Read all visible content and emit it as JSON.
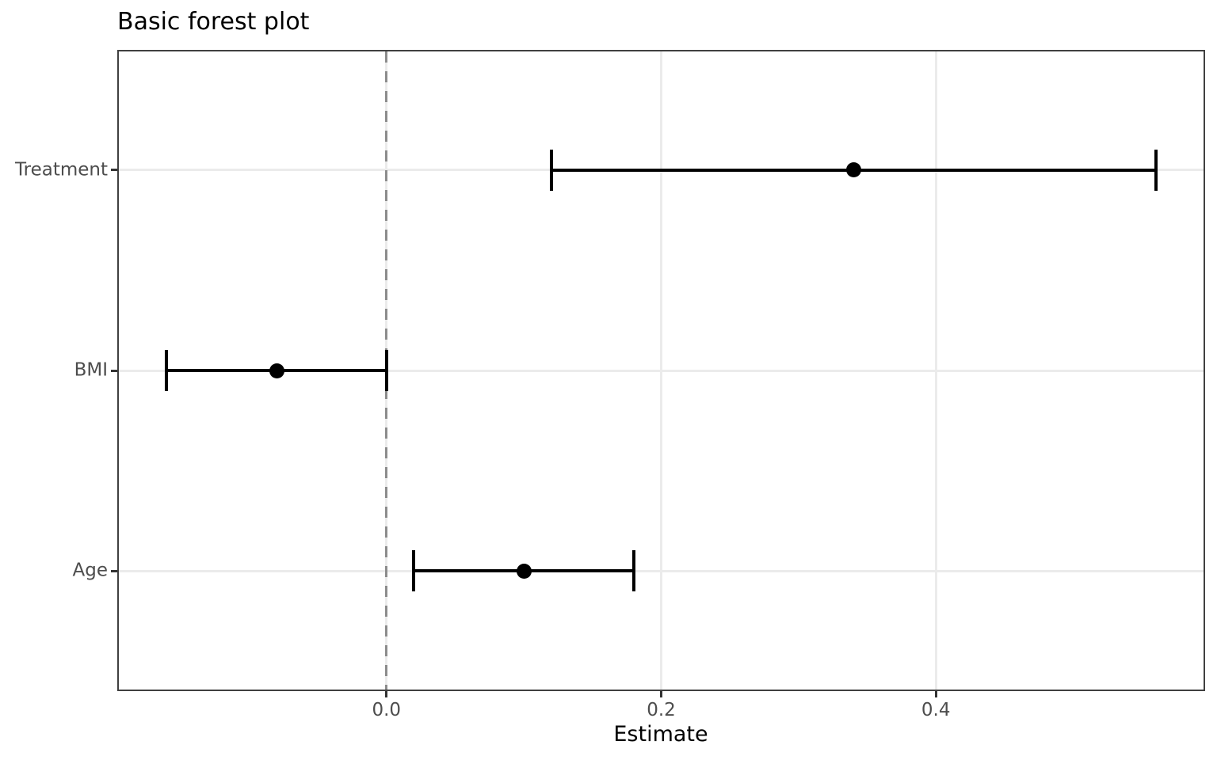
{
  "figure": {
    "title": "Basic forest plot",
    "x_axis_title": "Estimate"
  },
  "chart_data": {
    "type": "scatter",
    "subtype": "forest-plot",
    "title": "Basic forest plot",
    "xlabel": "Estimate",
    "ylabel": "",
    "categories": [
      "Treatment",
      "BMI",
      "Age"
    ],
    "rows": [
      {
        "label": "Treatment",
        "estimate": 0.34,
        "conf_low": 0.12,
        "conf_high": 0.56
      },
      {
        "label": "BMI",
        "estimate": -0.08,
        "conf_low": -0.16,
        "conf_high": 0.0
      },
      {
        "label": "Age",
        "estimate": 0.1,
        "conf_low": 0.02,
        "conf_high": 0.18
      }
    ],
    "xticks": {
      "values": [
        0.0,
        0.2,
        0.4
      ],
      "labels": [
        "0.0",
        "0.2",
        "0.4"
      ]
    },
    "xlim": [
      -0.196,
      0.596
    ],
    "reference_line_x": 0.0,
    "grid": "major-only",
    "legend": "none"
  },
  "colors": {
    "background": "#ffffff",
    "panel_border": "#404040",
    "gridline": "#ebebeb",
    "reference_line": "#8c8c8c",
    "data_black": "#000000",
    "axis_text": "#4d4d4d",
    "tick_mark": "#333333",
    "title_text": "#000000"
  }
}
